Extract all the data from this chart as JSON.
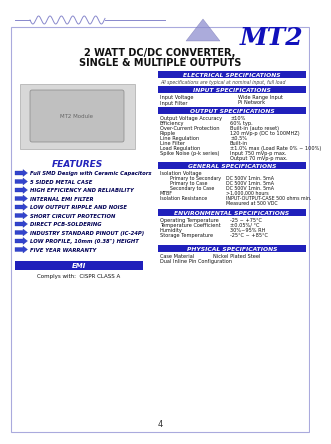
{
  "title_line1": "2 WATT DC/DC CONVERTER,",
  "title_line2": "SINGLE & MULTIPLE OUTPUTS",
  "model": "MT2",
  "section_headers": [
    "ELECTRICAL SPECIFICATIONS",
    "INPUT SPECIFICATIONS",
    "OUTPUT SPECIFICATIONS",
    "GENERAL SPECIFICATIONS",
    "ENVIRONMENTAL SPECIFICATIONS",
    "PHYSICAL SPECIFICATIONS"
  ],
  "elec_note": "All specifications are typical at nominal input, full load",
  "input_specs": [
    [
      "Input Voltage",
      "Wide Range Input"
    ],
    [
      "Input Filter",
      "Pi Network"
    ]
  ],
  "output_specs": [
    [
      "Output Voltage Accuracy",
      "±10%"
    ],
    [
      "Efficiency",
      "60% typ."
    ],
    [
      "Over-Current Protection",
      "Built-in (auto reset)"
    ],
    [
      "Ripple",
      "120 mVp-p (DC to 100MHZ)"
    ],
    [
      "Line Regulation",
      "±0.5%"
    ],
    [
      "Line Filter",
      "Built-in"
    ],
    [
      "Load Regulation",
      "±1.0% max (Load Rate 0% ~ 100%)"
    ],
    [
      "Spike Noise (p-k series)",
      "Input 750 mVp-p max."
    ],
    [
      "",
      "Output 70 mVp-p max."
    ]
  ],
  "general_specs_header": "Isolation Voltage",
  "general_specs": [
    [
      "Primary to Secondary",
      "DC 500V 1min. 5mA"
    ],
    [
      "Primary to Case",
      "DC 500V 1min. 5mA"
    ],
    [
      "Secondary to Case",
      "DC 500V 1min. 5mA"
    ],
    [
      "MTBF",
      ">1,000,000 hours"
    ],
    [
      "Isolation Resistance",
      "INPUT-OUTPUT-CASE 500 ohms min."
    ],
    [
      "",
      "Measured at 500 VDC"
    ]
  ],
  "env_specs": [
    [
      "Operating Temperature",
      "-25 ~ +75°C"
    ],
    [
      "Temperature Coefficient",
      "±0.05%/ °C"
    ],
    [
      "Humidity",
      "30%~95% RH"
    ],
    [
      "Storage Temperature",
      "-25°C ~ +85°C"
    ]
  ],
  "phys_specs": [
    [
      "Case Material",
      "Nickel Plated Steel"
    ],
    [
      "Dual Inline Pin Configuration",
      ""
    ]
  ],
  "features_title": "FEATURES",
  "features": [
    "Full SMD Design with Ceramic Capacitors",
    "5 SIDED METAL CASE",
    "HIGH EFFICIENCY AND RELIABILITY",
    "INTERNAL EMI FILTER",
    "LOW OUTPUT RIPPLE AND NOISE",
    "SHORT CIRCUIT PROTECTION",
    "DIRECT PCB-SOLDERING",
    "INDUSTRY STANDARD PINOUT (IC-24P)",
    "LOW PROFILE, 10mm (0.38\") HEIGHT",
    "FIVE YEAR WARRANTY"
  ],
  "emi_label": "EMI",
  "emi_text": "Complys with:  CISPR CLASS A",
  "page_number": "4",
  "blue_dark": "#2020bb",
  "text_color": "#111111"
}
